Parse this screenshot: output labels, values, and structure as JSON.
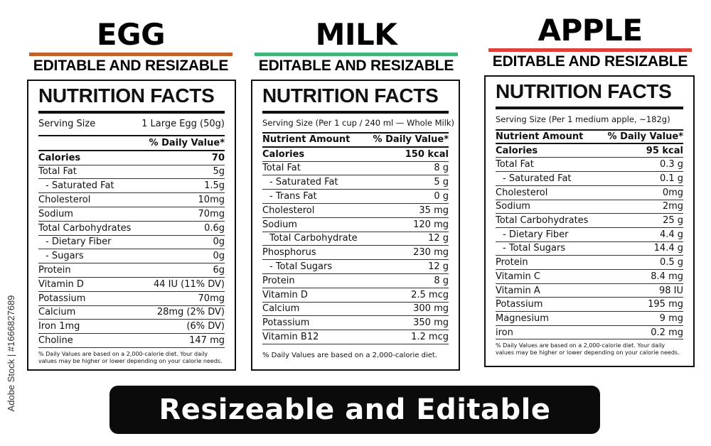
{
  "watermark": {
    "side_text": "Adobe Stock | #1666827689"
  },
  "banner": {
    "text": "Resizeable and Editable"
  },
  "labels": [
    {
      "name": "EGG",
      "accent_color": "#c0622a",
      "subtitle": "EDITABLE AND RESIZABLE",
      "panel_title": "NUTRITION FACTS",
      "serving_label": "Serving Size",
      "serving_value": "1 Large Egg (50g)",
      "header_left": "",
      "header_right": "% Daily Value*",
      "rows": [
        {
          "label": "Calories",
          "value": "70",
          "bold": true
        },
        {
          "label": "Total Fat",
          "value": "5g"
        },
        {
          "label": "- Saturated Fat",
          "value": "1.5g",
          "indent": true
        },
        {
          "label": "Cholesterol",
          "value": "10mg"
        },
        {
          "label": "Sodium",
          "value": "70mg"
        },
        {
          "label": "Total Carbohydrates",
          "value": "0.6g"
        },
        {
          "label": "- Dietary Fiber",
          "value": "0g",
          "indent": true
        },
        {
          "label": "- Sugars",
          "value": "0g",
          "indent": true
        },
        {
          "label": "Protein",
          "value": "6g"
        },
        {
          "label": "Vitamin D",
          "value": "44 IU (11% DV)"
        },
        {
          "label": "Potassium",
          "value": "70mg"
        },
        {
          "label": "Calcium",
          "value": "28mg (2% DV)"
        },
        {
          "label": "Iron 1mg",
          "value": "(6% DV)"
        },
        {
          "label": "Choline",
          "value": "147 mg"
        }
      ],
      "footnote": "% Daily Values are based on a 2,000-calorie diet. Your daily values may be higher or lower depending on your calorie needs."
    },
    {
      "name": "MILK",
      "accent_color": "#3fb57a",
      "subtitle": "EDITABLE AND RESIZABLE",
      "panel_title": "NUTRITION FACTS",
      "serving_label": "Serving Size (Per 1 cup / 240 ml — Whole Milk)",
      "serving_value": "",
      "header_left": "Nutrient Amount",
      "header_right": "% Daily Value*",
      "rows": [
        {
          "label": "Calories",
          "value": "150 kcal",
          "bold": true
        },
        {
          "label": "Total Fat",
          "value": "8 g"
        },
        {
          "label": "- Saturated Fat",
          "value": "5 g",
          "indent": true
        },
        {
          "label": "- Trans Fat",
          "value": "0 g",
          "indent": true
        },
        {
          "label": "Cholesterol",
          "value": "35 mg"
        },
        {
          "label": "Sodium",
          "value": "120 mg"
        },
        {
          "label": "Total Carbohydrate",
          "value": "12 g",
          "indent": true
        },
        {
          "label": "Phosphorus",
          "value": "230 mg"
        },
        {
          "label": "- Total Sugars",
          "value": "12 g",
          "indent": true
        },
        {
          "label": "Protein",
          "value": "8 g"
        },
        {
          "label": "Vitamin D",
          "value": "2.5 mcg"
        },
        {
          "label": "Calcium",
          "value": "300 mg"
        },
        {
          "label": "Potassium",
          "value": "350 mg"
        },
        {
          "label": "Vitamin B12",
          "value": "1.2 mcg"
        }
      ],
      "footnote": "% Daily Values are based on a 2,000-calorie diet."
    },
    {
      "name": "APPLE",
      "accent_color": "#e0403a",
      "subtitle": "EDITABLE AND RESIZABLE",
      "panel_title": "NUTRITION FACTS",
      "serving_label": "Serving Size (Per 1 medium apple, ~182g)",
      "serving_value": "",
      "header_left": "Nutrient Amount",
      "header_right": "% Daily Value*",
      "rows": [
        {
          "label": "Calories",
          "value": "95 kcal",
          "bold": true
        },
        {
          "label": "Total Fat",
          "value": "0.3 g"
        },
        {
          "label": "- Saturated Fat",
          "value": "0.1 g",
          "indent": true
        },
        {
          "label": "Cholesterol",
          "value": "0mg"
        },
        {
          "label": "Sodium",
          "value": "2mg"
        },
        {
          "label": "Total Carbohydrates",
          "value": "25 g"
        },
        {
          "label": "- Dietary Fiber",
          "value": "4.4 g",
          "indent": true
        },
        {
          "label": "- Total Sugars",
          "value": "14.4 g",
          "indent": true
        },
        {
          "label": "Protein",
          "value": "0.5 g"
        },
        {
          "label": "Vitamin C",
          "value": "8.4 mg"
        },
        {
          "label": "Vitamin A",
          "value": "98 IU"
        },
        {
          "label": "Potassium",
          "value": "195 mg"
        },
        {
          "label": "Magnesium",
          "value": "9 mg"
        },
        {
          "label": "iron",
          "value": "0.2 mg"
        }
      ],
      "footnote": "% Daily Values are based on a 2,000-calorie diet. Your daily values may be higher or lower depending on your calorie needs."
    }
  ]
}
